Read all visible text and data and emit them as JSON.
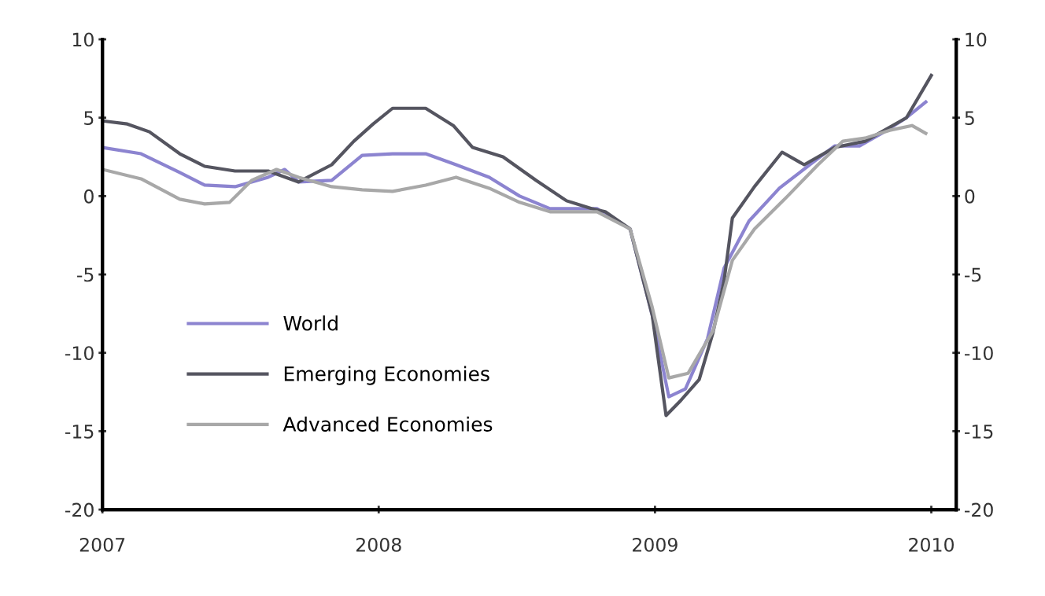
{
  "chart_data": {
    "type": "line",
    "xlim": [
      2007,
      2010.09
    ],
    "xticks": [
      2007,
      2008,
      2009,
      2010
    ],
    "ylim": [
      -20,
      10
    ],
    "yticks": [
      -20,
      -15,
      -10,
      -5,
      0,
      5,
      10
    ],
    "y2lim": [
      -20,
      10
    ],
    "y2ticks": [
      -20,
      -15,
      -10,
      -5,
      0,
      5,
      10
    ],
    "grid": false,
    "legend": "bottom left",
    "marker": "none",
    "line_style": "solid",
    "series": [
      {
        "name": "World",
        "color": "#8c84d0",
        "x": [
          2007.0,
          2007.14,
          2007.28,
          2007.37,
          2007.48,
          2007.6,
          2007.66,
          2007.71,
          2007.83,
          2007.94,
          2008.05,
          2008.17,
          2008.28,
          2008.4,
          2008.51,
          2008.62,
          2008.79,
          2008.91,
          2008.99,
          2009.05,
          2009.11,
          2009.19,
          2009.25,
          2009.34,
          2009.45,
          2009.56,
          2009.65,
          2009.74,
          2009.82,
          2009.91,
          2009.98
        ],
        "values": [
          3.1,
          2.7,
          1.5,
          0.7,
          0.6,
          1.2,
          1.7,
          0.9,
          1.0,
          2.6,
          2.7,
          2.7,
          2.0,
          1.2,
          0,
          -0.8,
          -0.8,
          -2.1,
          -7.6,
          -12.8,
          -12.3,
          -9.1,
          -4.6,
          -1.6,
          0.5,
          2.0,
          3.2,
          3.2,
          4.0,
          5.0,
          6.0
        ]
      },
      {
        "name": "Emerging Economies",
        "color": "#555560",
        "x": [
          2007.0,
          2007.09,
          2007.17,
          2007.28,
          2007.37,
          2007.48,
          2007.6,
          2007.71,
          2007.83,
          2007.91,
          2007.98,
          2008.05,
          2008.17,
          2008.27,
          2008.34,
          2008.45,
          2008.57,
          2008.68,
          2008.77,
          2008.82,
          2008.91,
          2008.99,
          2009.04,
          2009.09,
          2009.16,
          2009.21,
          2009.25,
          2009.28,
          2009.36,
          2009.46,
          2009.54,
          2009.65,
          2009.76,
          2009.91,
          2010.0
        ],
        "values": [
          4.8,
          4.6,
          4.1,
          2.7,
          1.9,
          1.6,
          1.6,
          0.9,
          2.0,
          3.5,
          4.6,
          5.6,
          5.6,
          4.5,
          3.1,
          2.5,
          1.0,
          -0.3,
          -0.8,
          -1.0,
          -2.1,
          -7.6,
          -14.0,
          -13.1,
          -11.7,
          -8.7,
          -5.4,
          -1.4,
          0.6,
          2.8,
          2.0,
          3.1,
          3.5,
          5.0,
          7.7
        ]
      },
      {
        "name": "Advanced Economies",
        "color": "#a8a8a8",
        "x": [
          2007.0,
          2007.14,
          2007.28,
          2007.37,
          2007.46,
          2007.54,
          2007.63,
          2007.71,
          2007.83,
          2007.94,
          2008.05,
          2008.17,
          2008.28,
          2008.4,
          2008.51,
          2008.62,
          2008.79,
          2008.91,
          2008.99,
          2009.05,
          2009.12,
          2009.21,
          2009.28,
          2009.36,
          2009.48,
          2009.59,
          2009.68,
          2009.76,
          2009.85,
          2009.93,
          2009.98
        ],
        "values": [
          1.7,
          1.1,
          -0.2,
          -0.5,
          -0.4,
          1.0,
          1.7,
          1.2,
          0.6,
          0.4,
          0.3,
          0.7,
          1.2,
          0.5,
          -0.4,
          -1.0,
          -1.0,
          -2.1,
          -7.1,
          -11.6,
          -11.3,
          -8.6,
          -4.1,
          -2.1,
          0,
          2.0,
          3.5,
          3.7,
          4.2,
          4.5,
          4.0
        ]
      }
    ]
  }
}
